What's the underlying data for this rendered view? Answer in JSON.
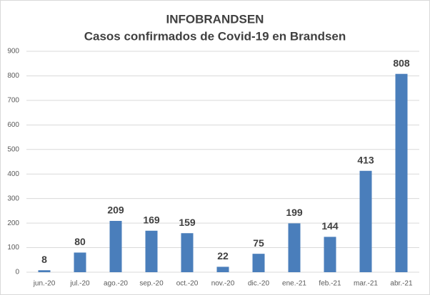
{
  "chart_data": {
    "type": "bar",
    "title": "INFOBRANDSEN",
    "subtitle": "Casos confirmados de Covid-19 en Brandsen",
    "categories": [
      "jun.-20",
      "jul.-20",
      "ago.-20",
      "sep.-20",
      "oct.-20",
      "nov.-20",
      "dic.-20",
      "ene.-21",
      "feb.-21",
      "mar.-21",
      "abr.-21"
    ],
    "values": [
      8,
      80,
      209,
      169,
      159,
      22,
      75,
      199,
      144,
      413,
      808
    ],
    "color": "#4a7ebb",
    "ylim": [
      0,
      900
    ],
    "yticks": [
      0,
      100,
      200,
      300,
      400,
      500,
      600,
      700,
      800,
      900
    ],
    "grid": true
  }
}
